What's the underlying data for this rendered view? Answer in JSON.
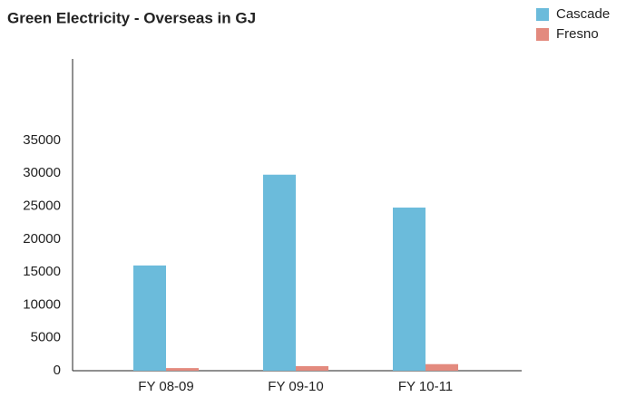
{
  "chart_data": {
    "type": "bar",
    "title": "Green Electricity - Overseas in GJ",
    "categories": [
      "FY 08-09",
      "FY 09-10",
      "FY 10-11"
    ],
    "series": [
      {
        "name": "Cascade",
        "color": "#6bbbdb",
        "values": [
          16000,
          29800,
          24800
        ]
      },
      {
        "name": "Fresno",
        "color": "#e38a7e",
        "values": [
          400,
          700,
          1000
        ]
      }
    ],
    "ylim": [
      0,
      47400
    ],
    "yticks": [
      0,
      5000,
      10000,
      15000,
      20000,
      25000,
      30000,
      35000
    ],
    "grid": false,
    "legend": "top-right"
  }
}
